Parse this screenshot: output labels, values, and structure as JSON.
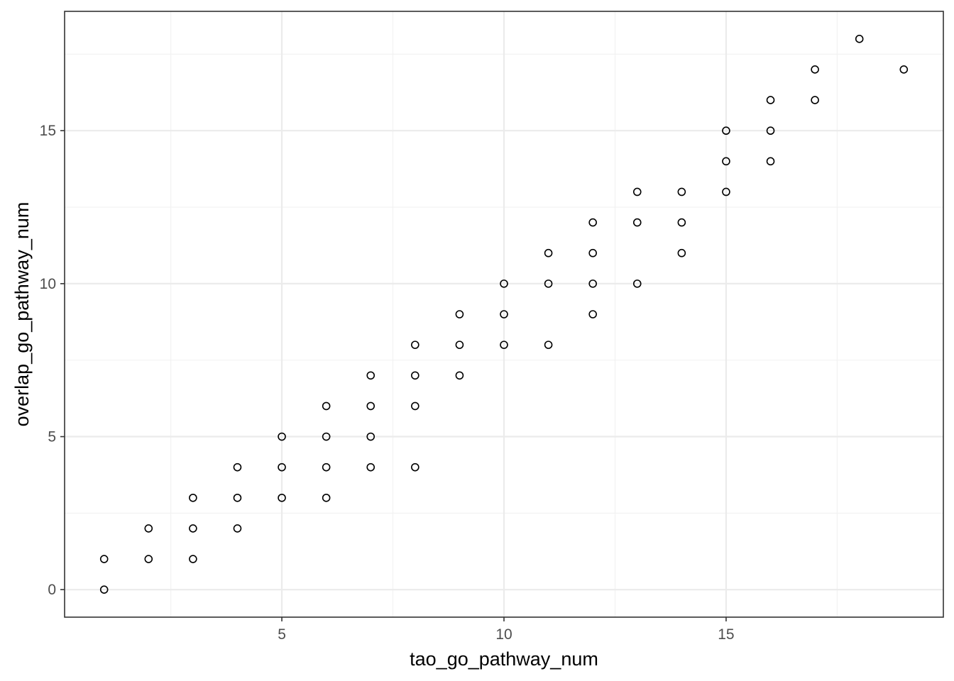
{
  "chart_data": {
    "type": "scatter",
    "title": "",
    "xlabel": "tao_go_pathway_num",
    "ylabel": "overlap_go_pathway_num",
    "xlim": [
      0.11,
      19.89
    ],
    "ylim": [
      -0.9,
      18.9
    ],
    "x_ticks": [
      5,
      10,
      15
    ],
    "y_ticks": [
      0,
      5,
      10,
      15
    ],
    "x_tick_labels": [
      "5",
      "10",
      "15"
    ],
    "y_tick_labels": [
      "0",
      "5",
      "10",
      "15"
    ],
    "grid": true,
    "legend": "none",
    "marker": "open-circle",
    "colors": {
      "point": "#000000",
      "panel_border": "#333333",
      "grid_major": "#ebebeb",
      "grid_minor": "#f2f2f2"
    },
    "points": [
      {
        "x": 1,
        "y": 0
      },
      {
        "x": 1,
        "y": 1
      },
      {
        "x": 2,
        "y": 1
      },
      {
        "x": 2,
        "y": 2
      },
      {
        "x": 3,
        "y": 1
      },
      {
        "x": 3,
        "y": 2
      },
      {
        "x": 3,
        "y": 3
      },
      {
        "x": 4,
        "y": 2
      },
      {
        "x": 4,
        "y": 3
      },
      {
        "x": 4,
        "y": 4
      },
      {
        "x": 5,
        "y": 3
      },
      {
        "x": 5,
        "y": 4
      },
      {
        "x": 5,
        "y": 5
      },
      {
        "x": 6,
        "y": 3
      },
      {
        "x": 6,
        "y": 4
      },
      {
        "x": 6,
        "y": 5
      },
      {
        "x": 6,
        "y": 6
      },
      {
        "x": 7,
        "y": 4
      },
      {
        "x": 7,
        "y": 5
      },
      {
        "x": 7,
        "y": 6
      },
      {
        "x": 7,
        "y": 7
      },
      {
        "x": 8,
        "y": 4
      },
      {
        "x": 8,
        "y": 6
      },
      {
        "x": 8,
        "y": 7
      },
      {
        "x": 8,
        "y": 8
      },
      {
        "x": 9,
        "y": 7
      },
      {
        "x": 9,
        "y": 8
      },
      {
        "x": 9,
        "y": 9
      },
      {
        "x": 10,
        "y": 8
      },
      {
        "x": 10,
        "y": 9
      },
      {
        "x": 10,
        "y": 10
      },
      {
        "x": 11,
        "y": 8
      },
      {
        "x": 11,
        "y": 10
      },
      {
        "x": 11,
        "y": 11
      },
      {
        "x": 12,
        "y": 9
      },
      {
        "x": 12,
        "y": 10
      },
      {
        "x": 12,
        "y": 11
      },
      {
        "x": 12,
        "y": 12
      },
      {
        "x": 13,
        "y": 10
      },
      {
        "x": 13,
        "y": 12
      },
      {
        "x": 13,
        "y": 13
      },
      {
        "x": 14,
        "y": 11
      },
      {
        "x": 14,
        "y": 12
      },
      {
        "x": 14,
        "y": 13
      },
      {
        "x": 15,
        "y": 13
      },
      {
        "x": 15,
        "y": 14
      },
      {
        "x": 15,
        "y": 15
      },
      {
        "x": 16,
        "y": 14
      },
      {
        "x": 16,
        "y": 15
      },
      {
        "x": 16,
        "y": 16
      },
      {
        "x": 17,
        "y": 16
      },
      {
        "x": 17,
        "y": 17
      },
      {
        "x": 18,
        "y": 18
      },
      {
        "x": 19,
        "y": 17
      }
    ]
  }
}
